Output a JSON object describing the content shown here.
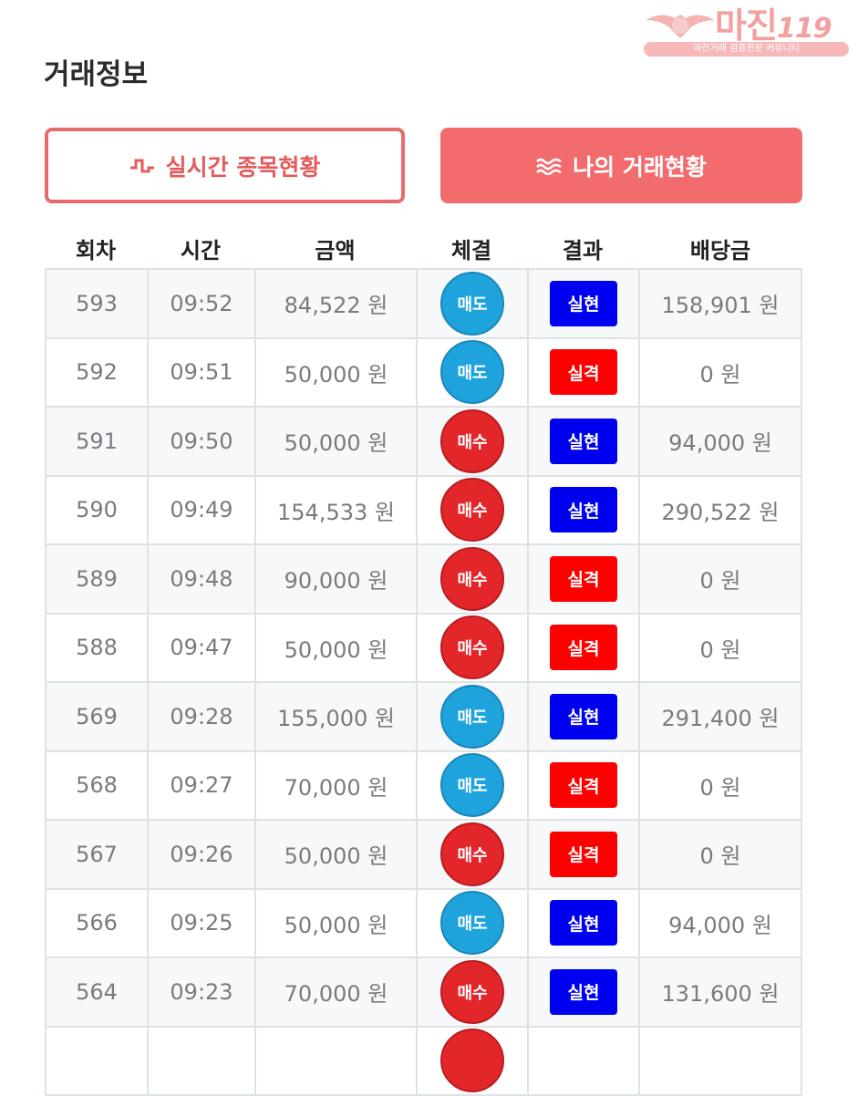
{
  "watermark": {
    "brand": "마진",
    "number": "119",
    "tagline": "마진거래 검증전문 커뮤니티"
  },
  "page_title": "거래정보",
  "tabs": {
    "live_label": "실시간 종목현황",
    "mine_label": "나의 거래현황"
  },
  "table": {
    "headers": [
      "회차",
      "시간",
      "금액",
      "체결",
      "결과",
      "배당금"
    ],
    "rows": [
      {
        "round": "593",
        "time": "09:52",
        "amount": "84,522 원",
        "trade": "매도",
        "trade_type": "sell",
        "result": "실현",
        "result_type": "win",
        "payout": "158,901 원"
      },
      {
        "round": "592",
        "time": "09:51",
        "amount": "50,000 원",
        "trade": "매도",
        "trade_type": "sell",
        "result": "실격",
        "result_type": "lose",
        "payout": "0 원"
      },
      {
        "round": "591",
        "time": "09:50",
        "amount": "50,000 원",
        "trade": "매수",
        "trade_type": "buy",
        "result": "실현",
        "result_type": "win",
        "payout": "94,000 원"
      },
      {
        "round": "590",
        "time": "09:49",
        "amount": "154,533 원",
        "trade": "매수",
        "trade_type": "buy",
        "result": "실현",
        "result_type": "win",
        "payout": "290,522 원"
      },
      {
        "round": "589",
        "time": "09:48",
        "amount": "90,000 원",
        "trade": "매수",
        "trade_type": "buy",
        "result": "실격",
        "result_type": "lose",
        "payout": "0 원"
      },
      {
        "round": "588",
        "time": "09:47",
        "amount": "50,000 원",
        "trade": "매수",
        "trade_type": "buy",
        "result": "실격",
        "result_type": "lose",
        "payout": "0 원"
      },
      {
        "round": "569",
        "time": "09:28",
        "amount": "155,000 원",
        "trade": "매도",
        "trade_type": "sell",
        "result": "실현",
        "result_type": "win",
        "payout": "291,400 원"
      },
      {
        "round": "568",
        "time": "09:27",
        "amount": "70,000 원",
        "trade": "매도",
        "trade_type": "sell",
        "result": "실격",
        "result_type": "lose",
        "payout": "0 원"
      },
      {
        "round": "567",
        "time": "09:26",
        "amount": "50,000 원",
        "trade": "매수",
        "trade_type": "buy",
        "result": "실격",
        "result_type": "lose",
        "payout": "0 원"
      },
      {
        "round": "566",
        "time": "09:25",
        "amount": "50,000 원",
        "trade": "매도",
        "trade_type": "sell",
        "result": "실현",
        "result_type": "win",
        "payout": "94,000 원"
      },
      {
        "round": "564",
        "time": "09:23",
        "amount": "70,000 원",
        "trade": "매수",
        "trade_type": "buy",
        "result": "실현",
        "result_type": "win",
        "payout": "131,600 원"
      },
      {
        "round": "",
        "time": "",
        "amount": "",
        "trade": "",
        "trade_type": "buy",
        "result": "",
        "result_type": "none",
        "payout": ""
      }
    ]
  },
  "colors": {
    "accent": "#f26c6e",
    "sell": "#1ea3dc",
    "buy": "#e3262a",
    "win": "#0000f0",
    "lose": "#ff0000"
  },
  "icons": {
    "live": "pulse-icon",
    "mine": "waves-icon"
  }
}
